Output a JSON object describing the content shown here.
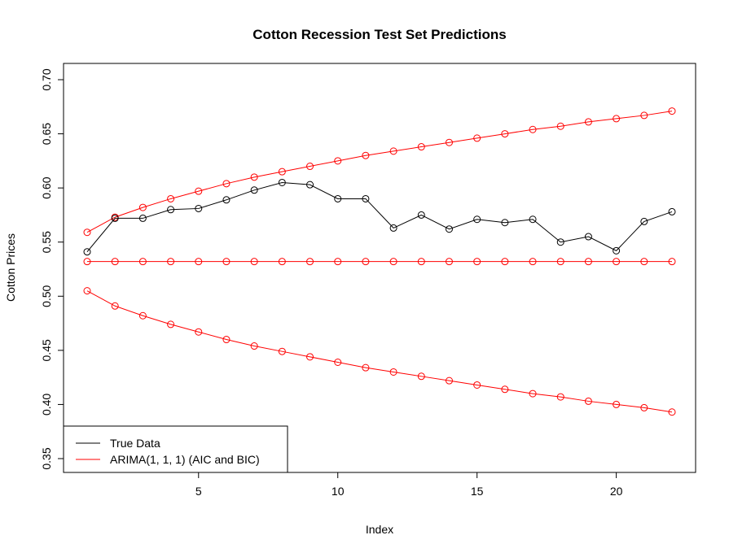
{
  "chart_data": {
    "type": "line",
    "title": "Cotton Recession Test Set Predictions",
    "xlabel": "Index",
    "ylabel": "Cotton Prices",
    "xlim": [
      1,
      22
    ],
    "ylim": [
      0.35,
      0.7
    ],
    "xticks": [
      5,
      10,
      15,
      20
    ],
    "yticks": [
      "0.35",
      "0.40",
      "0.45",
      "0.50",
      "0.55",
      "0.60",
      "0.65",
      "0.70"
    ],
    "grid": false,
    "legend": {
      "position": "bottom-left",
      "entries": [
        {
          "label": "True Data",
          "color": "#000000"
        },
        {
          "label": "ARIMA(1, 1, 1) (AIC and BIC)",
          "color": "#ff0000"
        }
      ]
    },
    "x": [
      1,
      2,
      3,
      4,
      5,
      6,
      7,
      8,
      9,
      10,
      11,
      12,
      13,
      14,
      15,
      16,
      17,
      18,
      19,
      20,
      21,
      22
    ],
    "series": [
      {
        "name": "True Data",
        "color": "#000000",
        "values": [
          0.541,
          0.572,
          0.572,
          0.58,
          0.581,
          0.589,
          0.598,
          0.605,
          0.603,
          0.59,
          0.59,
          0.563,
          0.575,
          0.562,
          0.571,
          0.568,
          0.571,
          0.55,
          0.555,
          0.542,
          0.569,
          0.578
        ]
      },
      {
        "name": "ARIMA(1, 1, 1) (AIC and BIC)",
        "color": "#ff0000",
        "values": [
          0.532,
          0.532,
          0.532,
          0.532,
          0.532,
          0.532,
          0.532,
          0.532,
          0.532,
          0.532,
          0.532,
          0.532,
          0.532,
          0.532,
          0.532,
          0.532,
          0.532,
          0.532,
          0.532,
          0.532,
          0.532,
          0.532
        ]
      },
      {
        "color": "#ff0000",
        "values": [
          0.559,
          0.573,
          0.582,
          0.59,
          0.597,
          0.604,
          0.61,
          0.615,
          0.62,
          0.625,
          0.63,
          0.634,
          0.638,
          0.642,
          0.646,
          0.65,
          0.654,
          0.657,
          0.661,
          0.664,
          0.667,
          0.671
        ]
      },
      {
        "color": "#ff0000",
        "values": [
          0.505,
          0.491,
          0.482,
          0.474,
          0.467,
          0.46,
          0.454,
          0.449,
          0.444,
          0.439,
          0.434,
          0.43,
          0.426,
          0.422,
          0.418,
          0.414,
          0.41,
          0.407,
          0.403,
          0.4,
          0.397,
          0.393
        ]
      }
    ]
  }
}
